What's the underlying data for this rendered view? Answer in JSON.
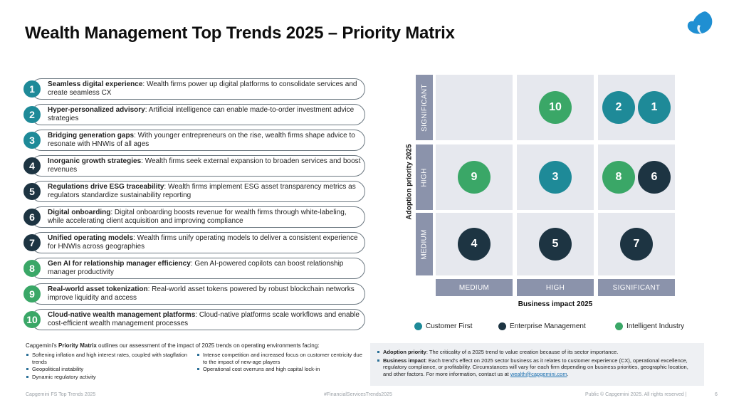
{
  "title": "Wealth Management Top Trends 2025 – Priority Matrix",
  "colors": {
    "customer_first": "#1e8a98",
    "enterprise_management": "#1d3442",
    "intelligent_industry": "#3aa767"
  },
  "trends": [
    {
      "num": "1",
      "bold": "Seamless digital experience",
      "rest": ": Wealth firms power up digital platforms to consolidate services and create seamless CX",
      "category": "customer_first"
    },
    {
      "num": "2",
      "bold": "Hyper-personalized advisory",
      "rest": ": Artificial intelligence can enable made-to-order investment advice strategies",
      "category": "customer_first"
    },
    {
      "num": "3",
      "bold": "Bridging generation gaps",
      "rest": ": With younger entrepreneurs on the rise, wealth firms shape advice to resonate with HNWIs of all ages",
      "category": "customer_first"
    },
    {
      "num": "4",
      "bold": "Inorganic growth strategies",
      "rest": ": Wealth firms seek external expansion to broaden services and boost revenues",
      "category": "enterprise_management"
    },
    {
      "num": "5",
      "bold": "Regulations drive ESG traceability",
      "rest": ": Wealth firms implement ESG asset transparency metrics as regulators standardize sustainability reporting",
      "category": "enterprise_management"
    },
    {
      "num": "6",
      "bold": "Digital onboarding",
      "rest": ": Digital onboarding boosts revenue for wealth firms through white-labeling, while accelerating client acquisition and improving compliance",
      "category": "enterprise_management"
    },
    {
      "num": "7",
      "bold": "Unified operating models",
      "rest": ": Wealth firms unify operating models to deliver a consistent experience for HNWIs across geographies",
      "category": "enterprise_management"
    },
    {
      "num": "8",
      "bold": "Gen AI for relationship manager efficiency",
      "rest": ": Gen AI-powered copilots can boost relationship manager productivity",
      "category": "intelligent_industry"
    },
    {
      "num": "9",
      "bold": "Real-world asset tokenization",
      "rest": ": Real-world asset tokens powered by robust blockchain networks improve liquidity and access",
      "category": "intelligent_industry"
    },
    {
      "num": "10",
      "bold": "Cloud-native wealth management platforms",
      "rest": ": Cloud-native platforms scale workflows and enable cost-efficient wealth management processes",
      "category": "intelligent_industry"
    }
  ],
  "note_left": {
    "intro_prefix": "Capgemini's ",
    "intro_bold": "Priority Matrix",
    "intro_suffix": " outlines our assessment of the impact of 2025 trends on operating environments facing:",
    "col1": [
      "Softening inflation and high interest rates, coupled with stagflation trends",
      "Geopolitical instability",
      "Dynamic regulatory activity"
    ],
    "col2": [
      "Intense competition and increased focus on customer centricity due to the impact of new-age players",
      "Operational cost overruns and high capital lock-in"
    ]
  },
  "chart_data": {
    "type": "scatter",
    "title": "Priority Matrix",
    "xlabel": "Business impact 2025",
    "ylabel": "Adoption priority 2025",
    "x_levels": [
      "MEDIUM",
      "HIGH",
      "SIGNIFICANT"
    ],
    "y_levels": [
      "MEDIUM",
      "HIGH",
      "SIGNIFICANT"
    ],
    "points": [
      {
        "label": "10",
        "x": "HIGH",
        "y": "SIGNIFICANT",
        "category": "intelligent_industry"
      },
      {
        "label": "2",
        "x": "SIGNIFICANT",
        "y": "SIGNIFICANT",
        "category": "customer_first"
      },
      {
        "label": "1",
        "x": "SIGNIFICANT",
        "y": "SIGNIFICANT",
        "category": "customer_first"
      },
      {
        "label": "9",
        "x": "MEDIUM",
        "y": "HIGH",
        "category": "intelligent_industry"
      },
      {
        "label": "3",
        "x": "HIGH",
        "y": "HIGH",
        "category": "customer_first"
      },
      {
        "label": "8",
        "x": "SIGNIFICANT",
        "y": "HIGH",
        "category": "intelligent_industry"
      },
      {
        "label": "6",
        "x": "SIGNIFICANT",
        "y": "HIGH",
        "category": "enterprise_management"
      },
      {
        "label": "4",
        "x": "MEDIUM",
        "y": "MEDIUM",
        "category": "enterprise_management"
      },
      {
        "label": "5",
        "x": "HIGH",
        "y": "MEDIUM",
        "category": "enterprise_management"
      },
      {
        "label": "7",
        "x": "SIGNIFICANT",
        "y": "MEDIUM",
        "category": "enterprise_management"
      }
    ],
    "legend": [
      {
        "name": "Customer First",
        "category": "customer_first"
      },
      {
        "name": "Enterprise Management",
        "category": "enterprise_management"
      },
      {
        "name": "Intelligent Industry",
        "category": "intelligent_industry"
      }
    ]
  },
  "note_right": {
    "adoption_bold": "Adoption priority",
    "adoption_text": ": The criticality of a 2025 trend to value creation because of its sector importance.",
    "impact_bold": "Business impact",
    "impact_text": ": Each trend's effect on 2025 sector business as it relates to customer experience (CX), operational excellence, regulatory compliance, or profitability. Circumstances will vary for each firm depending on business priorities, geographic location, and other factors. For more information, contact us at ",
    "email": "wealth@capgemini.com",
    "end": "."
  },
  "footer": {
    "left": "Capgemini FS Top Trends 2025",
    "center": "#FinancialServicesTrends2025",
    "right": "Public © Capgemini 2025. All rights reserved  |",
    "page": "6"
  }
}
